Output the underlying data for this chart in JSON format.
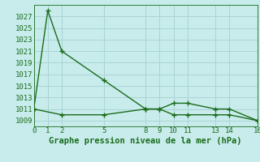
{
  "title": "Graphe pression niveau de la mer (hPa)",
  "background_color": "#c8ecec",
  "grid_color": "#aad4d4",
  "line_color": "#1a6b1a",
  "x_ticks": [
    0,
    1,
    2,
    5,
    8,
    9,
    10,
    11,
    13,
    14,
    16
  ],
  "xlim": [
    0,
    16
  ],
  "ylim": [
    1008,
    1029
  ],
  "y_ticks": [
    1009,
    1011,
    1013,
    1015,
    1017,
    1019,
    1021,
    1023,
    1025,
    1027
  ],
  "line1_x": [
    0,
    1,
    2,
    5,
    8,
    9,
    10,
    11,
    13,
    14,
    16
  ],
  "line1_y": [
    1011,
    1028,
    1021,
    1016,
    1011,
    1011,
    1012,
    1012,
    1011,
    1011,
    1009
  ],
  "line2_x": [
    0,
    2,
    5,
    8,
    9,
    10,
    11,
    13,
    14,
    16
  ],
  "line2_y": [
    1011,
    1010,
    1010,
    1011,
    1011,
    1010,
    1010,
    1010,
    1010,
    1009
  ],
  "title_fontsize": 7.5,
  "tick_fontsize": 6.5
}
